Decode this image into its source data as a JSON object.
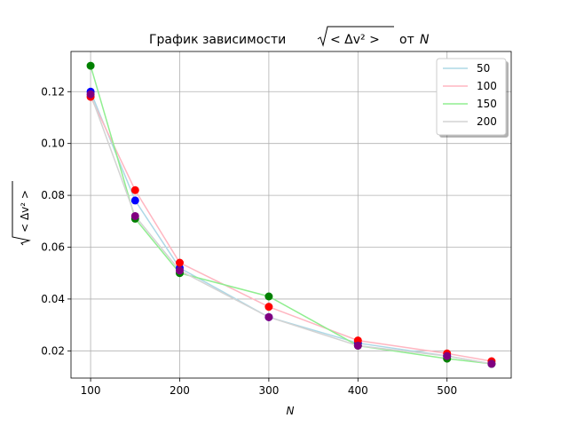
{
  "chart_data": {
    "type": "line",
    "title_prefix": "График зависимости",
    "title_suffix": "от",
    "title_var": "N",
    "xlabel": "N",
    "ylabel_expr": "< Δv² >",
    "xlim": [
      78,
      572
    ],
    "ylim": [
      0.0095,
      0.1355
    ],
    "xticks": [
      100,
      200,
      300,
      400,
      500
    ],
    "yticks": [
      0.02,
      0.04,
      0.06,
      0.08,
      0.1,
      0.12
    ],
    "ytick_labels": [
      "0.02",
      "0.04",
      "0.06",
      "0.08",
      "0.10",
      "0.12"
    ],
    "grid": true,
    "legend_position": "top-right",
    "x": [
      100,
      150,
      200,
      300,
      400,
      500,
      550
    ],
    "series": [
      {
        "name": "50",
        "line_color": "#add8e6",
        "marker_color": "#0000ff",
        "values": [
          0.12,
          0.078,
          0.052,
          0.033,
          0.023,
          0.018,
          0.015
        ]
      },
      {
        "name": "100",
        "line_color": "#ffb6c1",
        "marker_color": "#ff0000",
        "values": [
          0.118,
          0.082,
          0.054,
          0.037,
          0.024,
          0.019,
          0.016
        ]
      },
      {
        "name": "150",
        "line_color": "#90ee90",
        "marker_color": "#008000",
        "values": [
          0.13,
          0.071,
          0.05,
          0.041,
          0.022,
          0.017,
          0.015
        ]
      },
      {
        "name": "200",
        "line_color": "#d3d3d3",
        "marker_color": "#800080",
        "values": [
          0.119,
          0.072,
          0.051,
          0.033,
          0.022,
          0.018,
          0.015
        ]
      }
    ]
  }
}
